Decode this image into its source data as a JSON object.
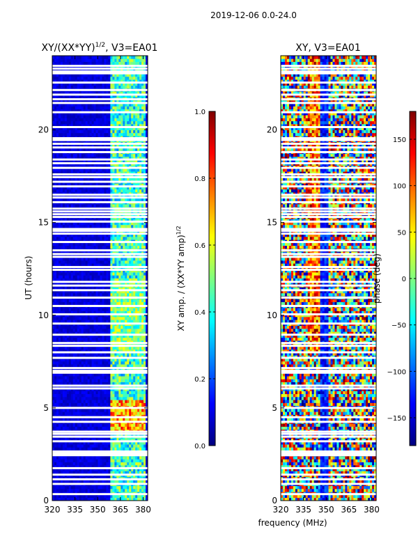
{
  "figure": {
    "suptitle": "2019-12-06 0.0-24.0",
    "shared_xlabel": "frequency (MHz)"
  },
  "chart_data": [
    {
      "type": "heatmap",
      "title": "XY/(XX*YY)",
      "title_sup": "1/2",
      "title_suffix": ", V3=EA01",
      "ylabel": "UT (hours)",
      "xlabel": "frequency (MHz)",
      "xlim": [
        320,
        383
      ],
      "ylim": [
        0,
        24
      ],
      "xticks": [
        320,
        335,
        350,
        365,
        380
      ],
      "yticks": [
        0,
        5,
        10,
        15,
        20
      ],
      "colorbar": {
        "label": "XY amp. / (XX*YY amp)",
        "label_sup": "1/2",
        "range": [
          0.0,
          1.0
        ],
        "ticks": [
          "0.0",
          "0.2",
          "0.4",
          "0.6",
          "0.8",
          "1.0"
        ],
        "colormap": "jet"
      },
      "description_values": {
        "background_level": 0.1,
        "bright_band_mhz": [
          360,
          380
        ],
        "bright_band_level": 0.5
      }
    },
    {
      "type": "heatmap",
      "title": "XY, V3=EA01",
      "xlabel": "frequency (MHz)",
      "xlim": [
        320,
        383
      ],
      "ylim": [
        0,
        24
      ],
      "xticks": [
        320,
        335,
        350,
        365,
        380
      ],
      "yticks": [
        0,
        5,
        10,
        15,
        20
      ],
      "colorbar": {
        "label": "phase (deg)",
        "range": [
          -180,
          180
        ],
        "ticks": [
          "−150",
          "−100",
          "−50",
          "0",
          "50",
          "100",
          "150"
        ],
        "colormap": "jet"
      }
    }
  ],
  "colormap_jet": [
    "#00007f",
    "#0000ff",
    "#007fff",
    "#00ffff",
    "#7fff7f",
    "#ffff00",
    "#ff7f00",
    "#ff0000",
    "#7f0000"
  ],
  "gap_rows_ut": [
    0.35,
    0.9,
    1.15,
    1.4,
    1.75,
    2.45,
    2.55,
    2.65,
    3.2,
    3.45,
    3.6,
    3.72,
    4.25,
    4.5,
    5.0,
    6.05,
    6.2,
    6.9,
    7.0,
    7.15,
    7.7,
    8.0,
    8.35,
    8.5,
    8.95,
    9.55,
    10.05,
    10.5,
    10.95,
    11.35,
    11.6,
    11.8,
    12.45,
    12.6,
    13.15,
    13.3,
    13.5,
    13.95,
    14.4,
    14.55,
    14.65,
    15.05,
    15.3,
    15.45,
    15.6,
    15.75,
    16.1,
    16.35,
    16.5,
    16.95,
    17.2,
    17.45,
    17.6,
    17.95,
    18.2,
    18.4,
    18.8,
    19.05,
    19.25,
    19.45,
    19.55,
    20.15,
    20.95,
    21.45,
    21.65,
    21.9,
    22.15,
    22.55,
    23.05,
    23.15,
    23.3,
    23.45
  ]
}
